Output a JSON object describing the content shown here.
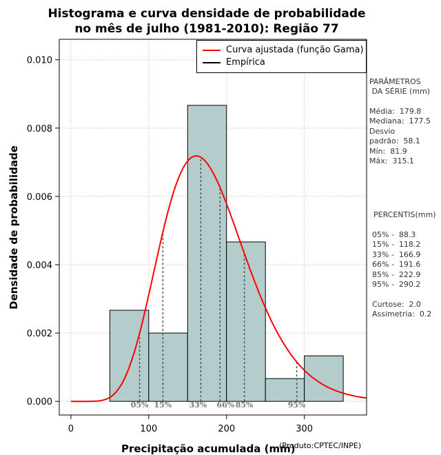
{
  "chart_data": {
    "type": "bar",
    "title_line1": "Histograma e curva densidade de probabilidade",
    "title_line2": "no mês de julho (1981-2010): Região 77",
    "xlabel": "Precipitação acumulada (mm)",
    "ylabel": "Densidade de probabilidade",
    "credit": "(Produto:CPTEC/INPE)",
    "xlim": [
      -15,
      380
    ],
    "ylim": [
      -0.0004,
      0.0106
    ],
    "x_ticks": [
      0,
      100,
      200,
      300
    ],
    "x_tick_labels": [
      "0",
      "100",
      "200",
      "300"
    ],
    "y_ticks": [
      0.0,
      0.002,
      0.004,
      0.006,
      0.008,
      0.01
    ],
    "y_tick_labels": [
      "0.000",
      "0.002",
      "0.004",
      "0.006",
      "0.008",
      "0.010"
    ],
    "bins": [
      {
        "x0": 50,
        "x1": 100,
        "density": 0.002667
      },
      {
        "x0": 100,
        "x1": 150,
        "density": 0.002
      },
      {
        "x0": 150,
        "x1": 200,
        "density": 0.008667
      },
      {
        "x0": 200,
        "x1": 250,
        "density": 0.004667
      },
      {
        "x0": 250,
        "x1": 300,
        "density": 0.000667
      },
      {
        "x0": 300,
        "x1": 350,
        "density": 0.001333
      }
    ],
    "gamma_fit": {
      "mean": 179.8,
      "sd": 58.1
    },
    "percentile_markers": [
      {
        "label": "05%",
        "x": 88.3
      },
      {
        "label": "15%",
        "x": 118.2
      },
      {
        "label": "33%",
        "x": 166.9
      },
      {
        "label": "66%",
        "x": 191.6
      },
      {
        "label": "85%",
        "x": 222.9
      },
      {
        "label": "95%",
        "x": 290.2
      }
    ],
    "legend": [
      {
        "label": "Curva ajustada (função Gama)",
        "color": "#ff0000"
      },
      {
        "label": "Empírica",
        "color": "#000000"
      }
    ],
    "bar_color": "#b4cccb",
    "curve_color": "#ff0000",
    "grid": true
  },
  "side_panel": {
    "parametros_title": "PARÂMETROS\n DA SÉRIE (mm)",
    "parametros_values": "Média:  179.8\nMediana:  177.5\nDesvio\npadrão:  58.1\nMín:  81.9\nMáx:  315.1",
    "percentis_title": "PERCENTIS(mm)",
    "percentis_values": "05% -  88.3\n15% -  118.2\n33% -  166.9\n66% -  191.6\n85% -  222.9\n95% -  290.2",
    "stats_values": "Curtose:  2.0\nAssimetria:  0.2"
  }
}
